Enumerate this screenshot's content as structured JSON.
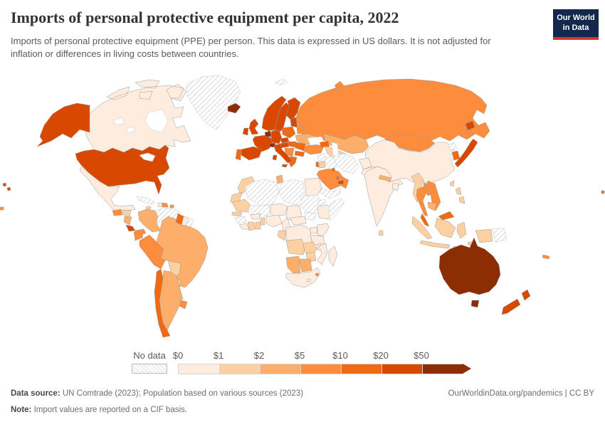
{
  "header": {
    "title": "Imports of personal protective equipment per capita, 2022",
    "subtitle": "Imports of personal protective equipment (PPE) per person. This data is expressed in US dollars. It is not adjusted for inflation or differences in living costs between countries.",
    "logo_line1": "Our World",
    "logo_line2": "in Data"
  },
  "legend": {
    "no_data_label": "No data",
    "tick_labels": [
      "$0",
      "$1",
      "$2",
      "$5",
      "$10",
      "$20",
      "$50"
    ],
    "band_colors": [
      "#feedde",
      "#fdd0a2",
      "#fdae6b",
      "#fd8d3c",
      "#f16913",
      "#d94801",
      "#8c2d04"
    ],
    "band_labels": [
      "$0-$1",
      "$1-$2",
      "$2-$5",
      "$5-$10",
      "$10-$20",
      "$20-$50",
      "$50+"
    ],
    "accent_navy": "#12294d",
    "accent_red": "#d5342c"
  },
  "footer": {
    "source_label": "Data source:",
    "source_text": " UN Comtrade (2023); Population based on various sources (2023)",
    "note_label": "Note:",
    "note_text": " Import values are reported on a CIF basis.",
    "credit": "OurWorldinData.org/pandemics | CC BY"
  },
  "chart_data": {
    "type": "choropleth",
    "title": "Imports of personal protective equipment per capita, 2022",
    "unit": "US dollars per person",
    "bins": [
      "$0-$1",
      "$1-$2",
      "$2-$5",
      "$5-$10",
      "$10-$20",
      "$20-$50",
      "$50+",
      "No data"
    ],
    "countries": [
      {
        "id": "usa",
        "name": "United States",
        "band": 5
      },
      {
        "id": "canada",
        "name": "Canada",
        "band": 0
      },
      {
        "id": "greenland",
        "name": "Greenland",
        "band": "nd"
      },
      {
        "id": "iceland",
        "name": "Iceland",
        "band": 6
      },
      {
        "id": "mexico",
        "name": "Mexico",
        "band": 0
      },
      {
        "id": "guatemala",
        "name": "Guatemala",
        "band": 3
      },
      {
        "id": "honduras",
        "name": "Honduras",
        "band": 1
      },
      {
        "id": "nicaragua",
        "name": "Nicaragua",
        "band": 2
      },
      {
        "id": "costa-rica",
        "name": "Costa Rica",
        "band": 5
      },
      {
        "id": "panama",
        "name": "Panama",
        "band": 3
      },
      {
        "id": "cuba",
        "name": "Cuba",
        "band": "nd"
      },
      {
        "id": "jamaica",
        "name": "Jamaica",
        "band": 1
      },
      {
        "id": "haiti",
        "name": "Haiti",
        "band": 0
      },
      {
        "id": "dominican-republic",
        "name": "Dominican Republic",
        "band": 3
      },
      {
        "id": "puerto-rico",
        "name": "Puerto Rico",
        "band": 3
      },
      {
        "id": "trinidad-tobago",
        "name": "Trinidad and Tobago",
        "band": 3
      },
      {
        "id": "colombia",
        "name": "Colombia",
        "band": 2
      },
      {
        "id": "venezuela",
        "name": "Venezuela",
        "band": "nd"
      },
      {
        "id": "guyana",
        "name": "Guyana",
        "band": 4
      },
      {
        "id": "suriname",
        "name": "Suriname",
        "band": 0
      },
      {
        "id": "french-guiana",
        "name": "French Guiana",
        "band": "nd"
      },
      {
        "id": "ecuador",
        "name": "Ecuador",
        "band": 3
      },
      {
        "id": "peru",
        "name": "Peru",
        "band": 3
      },
      {
        "id": "brazil",
        "name": "Brazil",
        "band": 2
      },
      {
        "id": "bolivia",
        "name": "Bolivia",
        "band": 1
      },
      {
        "id": "paraguay",
        "name": "Paraguay",
        "band": 1
      },
      {
        "id": "uruguay",
        "name": "Uruguay",
        "band": 3
      },
      {
        "id": "argentina",
        "name": "Argentina",
        "band": 2
      },
      {
        "id": "chile",
        "name": "Chile",
        "band": 4
      },
      {
        "id": "norway",
        "name": "Norway",
        "band": 5
      },
      {
        "id": "sweden",
        "name": "Sweden",
        "band": 5
      },
      {
        "id": "finland",
        "name": "Finland",
        "band": 5
      },
      {
        "id": "denmark",
        "name": "Denmark",
        "band": 5
      },
      {
        "id": "uk",
        "name": "United Kingdom",
        "band": 5
      },
      {
        "id": "ireland",
        "name": "Ireland",
        "band": 5
      },
      {
        "id": "benelux",
        "name": "Netherlands/Belgium",
        "band": 6
      },
      {
        "id": "germany",
        "name": "Germany",
        "band": 5
      },
      {
        "id": "france",
        "name": "France",
        "band": 5
      },
      {
        "id": "switzerland",
        "name": "Switzerland",
        "band": 6
      },
      {
        "id": "austria",
        "name": "Austria",
        "band": 5
      },
      {
        "id": "czechia",
        "name": "Czechia",
        "band": 5
      },
      {
        "id": "poland",
        "name": "Poland",
        "band": 4
      },
      {
        "id": "baltics",
        "name": "Baltic states",
        "band": 5
      },
      {
        "id": "belarus",
        "name": "Belarus",
        "band": 3
      },
      {
        "id": "ukraine",
        "name": "Ukraine",
        "band": 2
      },
      {
        "id": "slovakia-hungary",
        "name": "Slovakia/Hungary",
        "band": 4
      },
      {
        "id": "romania",
        "name": "Romania",
        "band": 4
      },
      {
        "id": "bulgaria",
        "name": "Bulgaria",
        "band": 4
      },
      {
        "id": "serbia-balkans",
        "name": "Western Balkans",
        "band": 3
      },
      {
        "id": "greece",
        "name": "Greece",
        "band": 4
      },
      {
        "id": "italy",
        "name": "Italy",
        "band": 5
      },
      {
        "id": "spain",
        "name": "Spain",
        "band": 5
      },
      {
        "id": "portugal",
        "name": "Portugal",
        "band": 4
      },
      {
        "id": "svalbard",
        "name": "Svalbard",
        "band": "nd"
      },
      {
        "id": "russia",
        "name": "Russia",
        "band": 3
      },
      {
        "id": "kazakhstan",
        "name": "Kazakhstan",
        "band": 2
      },
      {
        "id": "central-asia",
        "name": "Central Asia",
        "band": 1
      },
      {
        "id": "caucasus",
        "name": "Caucasus",
        "band": 4
      },
      {
        "id": "turkey",
        "name": "Turkey",
        "band": 3
      },
      {
        "id": "syria",
        "name": "Syria",
        "band": "nd"
      },
      {
        "id": "iraq",
        "name": "Iraq",
        "band": "nd"
      },
      {
        "id": "iran",
        "name": "Iran",
        "band": "nd"
      },
      {
        "id": "afghanistan",
        "name": "Afghanistan",
        "band": 0
      },
      {
        "id": "pakistan",
        "name": "Pakistan",
        "band": 0
      },
      {
        "id": "india",
        "name": "India",
        "band": 0
      },
      {
        "id": "nepal",
        "name": "Nepal",
        "band": 2
      },
      {
        "id": "bangladesh",
        "name": "Bangladesh",
        "band": 0
      },
      {
        "id": "sri-lanka",
        "name": "Sri Lanka",
        "band": 1
      },
      {
        "id": "myanmar",
        "name": "Myanmar",
        "band": 1
      },
      {
        "id": "thailand",
        "name": "Thailand",
        "band": 3
      },
      {
        "id": "laos",
        "name": "Laos",
        "band": 3
      },
      {
        "id": "vietnam",
        "name": "Vietnam",
        "band": 3
      },
      {
        "id": "cambodia",
        "name": "Cambodia",
        "band": 2
      },
      {
        "id": "malaysia",
        "name": "Malaysia",
        "band": 4
      },
      {
        "id": "indonesia",
        "name": "Indonesia",
        "band": 1
      },
      {
        "id": "philippines",
        "name": "Philippines",
        "band": 1
      },
      {
        "id": "taiwan",
        "name": "Taiwan",
        "band": 1
      },
      {
        "id": "china",
        "name": "China",
        "band": 0
      },
      {
        "id": "mongolia",
        "name": "Mongolia",
        "band": 3
      },
      {
        "id": "north-korea",
        "name": "North Korea",
        "band": "nd"
      },
      {
        "id": "south-korea",
        "name": "South Korea",
        "band": 4
      },
      {
        "id": "japan",
        "name": "Japan",
        "band": 5
      },
      {
        "id": "saudi-arabia",
        "name": "Saudi Arabia",
        "band": 3
      },
      {
        "id": "yemen",
        "name": "Yemen",
        "band": "nd"
      },
      {
        "id": "oman",
        "name": "Oman",
        "band": 3
      },
      {
        "id": "uae",
        "name": "United Arab Emirates",
        "band": 5
      },
      {
        "id": "qatar",
        "name": "Qatar",
        "band": 4
      },
      {
        "id": "kuwait",
        "name": "Kuwait",
        "band": 4
      },
      {
        "id": "israel",
        "name": "Israel",
        "band": 4
      },
      {
        "id": "jordan",
        "name": "Jordan",
        "band": 1
      },
      {
        "id": "morocco",
        "name": "Morocco",
        "band": 1
      },
      {
        "id": "western-sahara",
        "name": "Western Sahara",
        "band": 1
      },
      {
        "id": "algeria",
        "name": "Algeria",
        "band": "nd"
      },
      {
        "id": "tunisia",
        "name": "Tunisia",
        "band": 2
      },
      {
        "id": "libya",
        "name": "Libya",
        "band": "nd"
      },
      {
        "id": "egypt",
        "name": "Egypt",
        "band": 0
      },
      {
        "id": "mauritania",
        "name": "Mauritania",
        "band": 1
      },
      {
        "id": "mali",
        "name": "Mali",
        "band": "nd"
      },
      {
        "id": "senegal",
        "name": "Senegal",
        "band": 1
      },
      {
        "id": "guinea",
        "name": "Guinea",
        "band": "nd"
      },
      {
        "id": "sierra-leone-liberia",
        "name": "Sierra Leone/Liberia",
        "band": 0
      },
      {
        "id": "ivory-coast",
        "name": "Cote d'Ivoire",
        "band": 1
      },
      {
        "id": "ghana",
        "name": "Ghana",
        "band": 1
      },
      {
        "id": "burkina-faso",
        "name": "Burkina Faso",
        "band": 0
      },
      {
        "id": "benin-togo",
        "name": "Benin/Togo",
        "band": 1
      },
      {
        "id": "niger",
        "name": "Niger",
        "band": 0
      },
      {
        "id": "nigeria",
        "name": "Nigeria",
        "band": 0
      },
      {
        "id": "chad",
        "name": "Chad",
        "band": 0
      },
      {
        "id": "sudan",
        "name": "Sudan",
        "band": "nd"
      },
      {
        "id": "south-sudan",
        "name": "South Sudan",
        "band": "nd"
      },
      {
        "id": "eritrea",
        "name": "Eritrea",
        "band": "nd"
      },
      {
        "id": "ethiopia",
        "name": "Ethiopia",
        "band": 0
      },
      {
        "id": "somalia",
        "name": "Somalia",
        "band": "nd"
      },
      {
        "id": "cameroon",
        "name": "Cameroon",
        "band": 0
      },
      {
        "id": "central-african-republic",
        "name": "Central African Republic",
        "band": 0
      },
      {
        "id": "congo-gabon",
        "name": "Congo/Gabon",
        "band": 1
      },
      {
        "id": "drc",
        "name": "Democratic Republic of Congo",
        "band": 0
      },
      {
        "id": "uganda",
        "name": "Uganda",
        "band": 0
      },
      {
        "id": "kenya",
        "name": "Kenya",
        "band": 0
      },
      {
        "id": "tanzania",
        "name": "Tanzania",
        "band": 0
      },
      {
        "id": "angola",
        "name": "Angola",
        "band": 1
      },
      {
        "id": "zambia",
        "name": "Zambia",
        "band": 1
      },
      {
        "id": "malawi",
        "name": "Malawi",
        "band": 0
      },
      {
        "id": "mozambique",
        "name": "Mozambique",
        "band": 0
      },
      {
        "id": "zimbabwe",
        "name": "Zimbabwe",
        "band": 1
      },
      {
        "id": "namibia",
        "name": "Namibia",
        "band": 2
      },
      {
        "id": "botswana",
        "name": "Botswana",
        "band": 2
      },
      {
        "id": "south-africa",
        "name": "South Africa",
        "band": 0
      },
      {
        "id": "lesotho",
        "name": "Lesotho",
        "band": 0
      },
      {
        "id": "eswatini",
        "name": "Eswatini",
        "band": 3
      },
      {
        "id": "madagascar",
        "name": "Madagascar",
        "band": 0
      },
      {
        "id": "australia",
        "name": "Australia",
        "band": 6
      },
      {
        "id": "new-zealand",
        "name": "New Zealand",
        "band": 5
      },
      {
        "id": "papua-new-guinea",
        "name": "Papua New Guinea",
        "band": "nd"
      },
      {
        "id": "new-caledonia",
        "name": "New Caledonia",
        "band": 3
      },
      {
        "id": "fiji",
        "name": "Fiji",
        "band": 4
      },
      {
        "id": "french-polynesia",
        "name": "French Polynesia",
        "band": 3
      }
    ]
  }
}
